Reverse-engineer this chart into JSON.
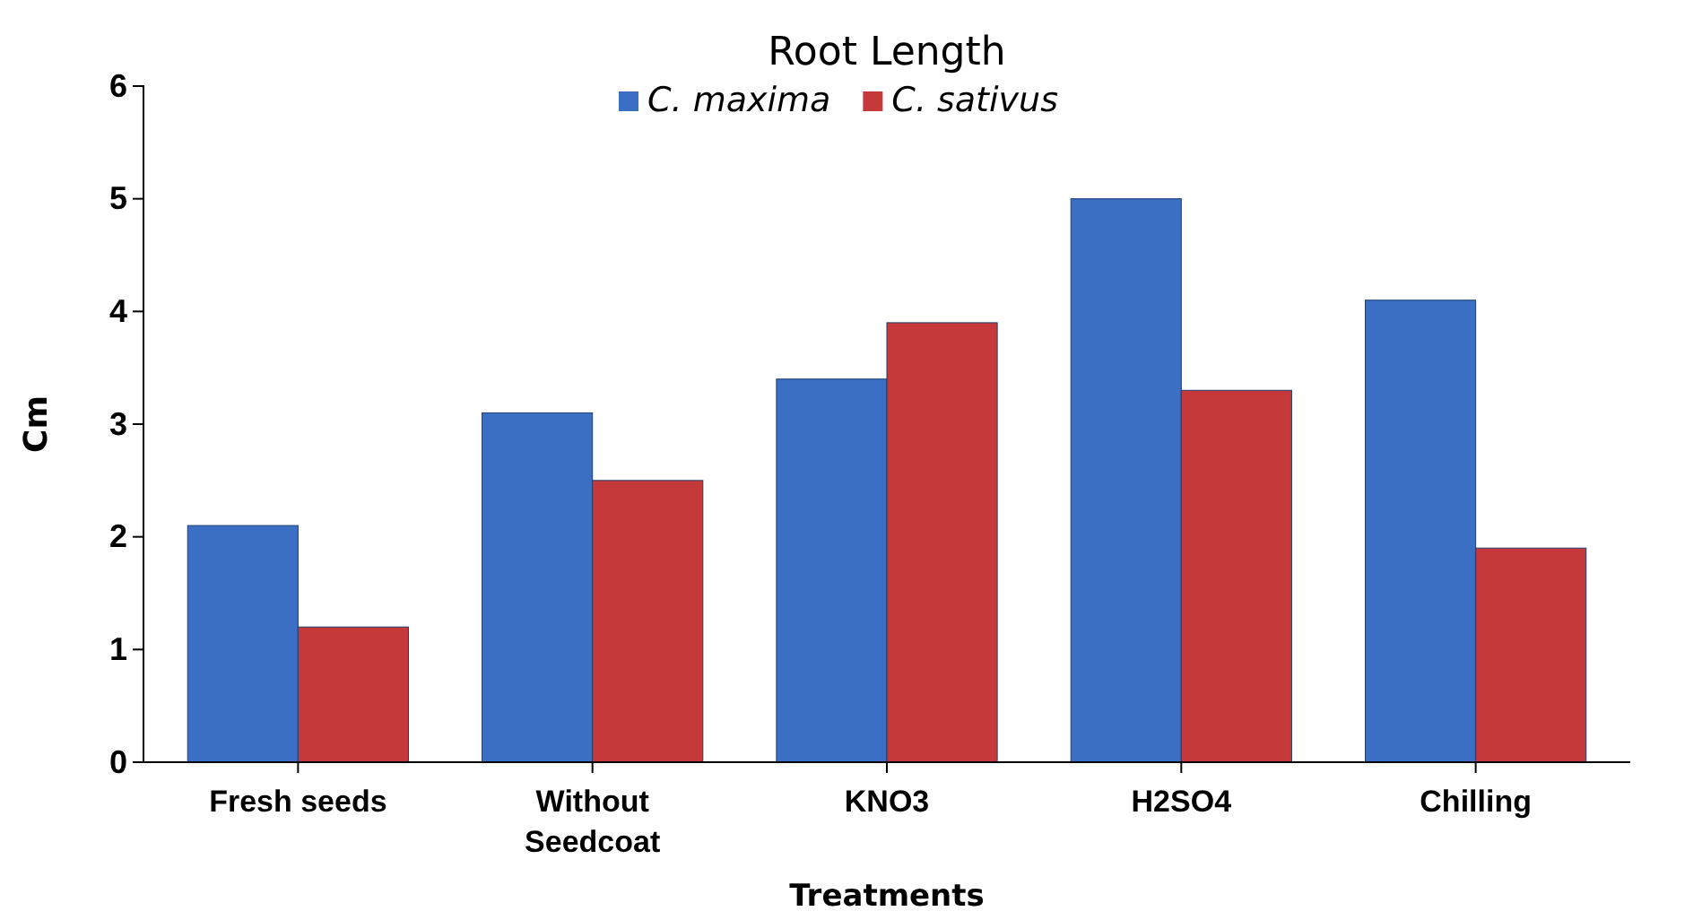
{
  "chart_data": {
    "type": "bar",
    "title": "Root Length",
    "xlabel": "Treatments",
    "ylabel": "Cm",
    "categories": [
      "Fresh seeds",
      "Without Seedcoat",
      "KNO3",
      "H2SO4",
      "Chilling"
    ],
    "series": [
      {
        "name": "C. maxima",
        "color": "#3a6fc4",
        "values": [
          2.1,
          3.1,
          3.4,
          5.0,
          4.1
        ]
      },
      {
        "name": "C. sativus",
        "color": "#c6393a",
        "values": [
          1.2,
          2.5,
          3.9,
          3.3,
          1.9
        ]
      }
    ],
    "ylim": [
      0,
      6
    ],
    "yticks": [
      0,
      1,
      2,
      3,
      4,
      5,
      6
    ],
    "grid": false,
    "legend": "top"
  }
}
